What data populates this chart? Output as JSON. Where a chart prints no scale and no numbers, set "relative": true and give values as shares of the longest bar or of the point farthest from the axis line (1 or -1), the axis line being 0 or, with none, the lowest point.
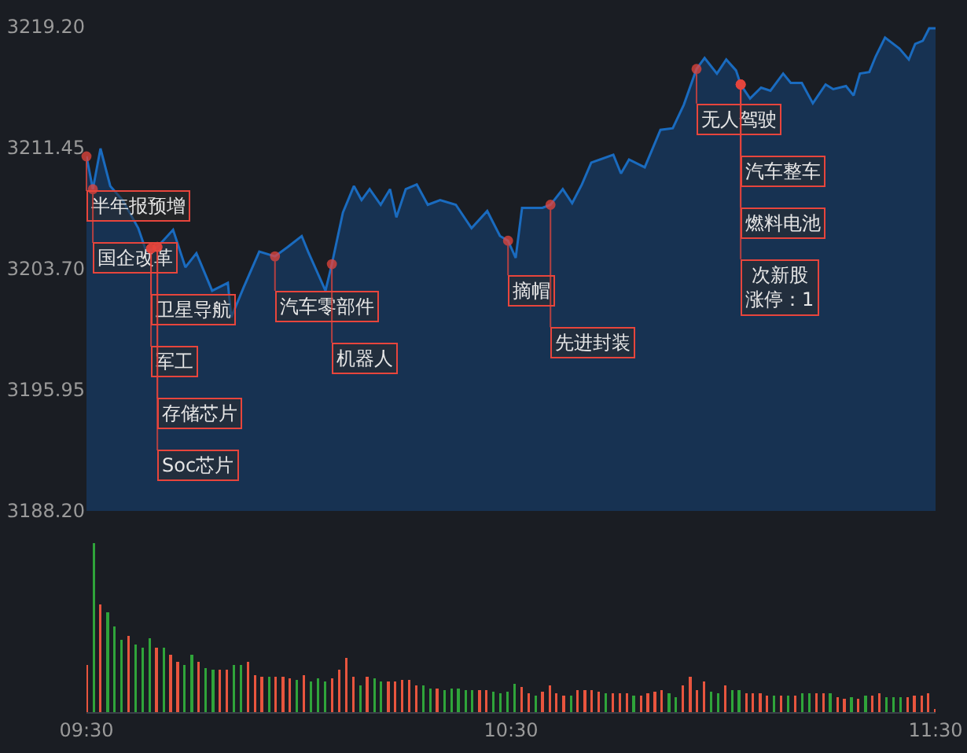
{
  "chart_data": [
    {
      "type": "area",
      "tick_labels": "y",
      "grid": false,
      "legend": false,
      "marker": "none",
      "xlim": [
        9.5,
        11.5
      ],
      "ylim": [
        3188.2,
        3219.2
      ],
      "yticks": [
        {
          "value": 3188.2,
          "label": "3188.20"
        },
        {
          "value": 3195.95,
          "label": "3195.95"
        },
        {
          "value": 3203.7,
          "label": "3203.70"
        },
        {
          "value": 3211.45,
          "label": "3211.45"
        },
        {
          "value": 3219.2,
          "label": "3219.20"
        }
      ],
      "x": [
        9.5,
        9.515,
        9.533,
        9.556,
        9.585,
        9.622,
        9.641,
        9.667,
        9.704,
        9.733,
        9.759,
        9.796,
        9.833,
        9.841,
        9.87,
        9.907,
        9.944,
        9.974,
        10.007,
        10.022,
        10.063,
        10.078,
        10.104,
        10.13,
        10.148,
        10.167,
        10.193,
        10.215,
        10.23,
        10.252,
        10.278,
        10.304,
        10.333,
        10.37,
        10.407,
        10.444,
        10.474,
        10.493,
        10.511,
        10.526,
        10.574,
        10.593,
        10.622,
        10.644,
        10.667,
        10.689,
        10.741,
        10.759,
        10.778,
        10.815,
        10.852,
        10.881,
        10.907,
        10.937,
        10.956,
        10.985,
        11.007,
        11.03,
        11.041,
        11.063,
        11.089,
        11.111,
        11.141,
        11.159,
        11.185,
        11.211,
        11.241,
        11.259,
        11.289,
        11.307,
        11.322,
        11.344,
        11.359,
        11.381,
        11.415,
        11.437,
        11.452,
        11.47,
        11.485,
        11.5
      ],
      "series": [
        {
          "color": "#1a6bbf",
          "values": [
            3210.9,
            3208.8,
            3211.4,
            3209.0,
            3208.1,
            3206.3,
            3204.8,
            3205.1,
            3206.2,
            3203.8,
            3204.7,
            3202.3,
            3202.8,
            3200.6,
            3202.5,
            3204.8,
            3204.5,
            3205.1,
            3205.8,
            3204.8,
            3202.3,
            3204.0,
            3207.3,
            3209.0,
            3208.1,
            3208.8,
            3207.8,
            3208.8,
            3207.0,
            3208.8,
            3209.1,
            3207.8,
            3208.1,
            3207.8,
            3206.3,
            3207.4,
            3205.8,
            3205.5,
            3204.4,
            3207.6,
            3207.6,
            3207.8,
            3208.8,
            3207.9,
            3209.1,
            3210.5,
            3211.0,
            3209.8,
            3210.7,
            3210.2,
            3212.6,
            3212.7,
            3214.2,
            3216.5,
            3217.2,
            3216.2,
            3217.1,
            3216.4,
            3215.5,
            3214.6,
            3215.3,
            3215.1,
            3216.2,
            3215.6,
            3215.6,
            3214.3,
            3215.5,
            3215.2,
            3215.4,
            3214.8,
            3216.2,
            3216.3,
            3217.3,
            3218.5,
            3217.8,
            3217.1,
            3218.1,
            3218.3,
            3219.1,
            3219.1
          ]
        }
      ],
      "annotations": [
        {
          "text": "半年报预增",
          "x": 9.5,
          "y": 3210.9
        },
        {
          "text": "国企改革",
          "x": 9.515,
          "y": 3208.8
        },
        {
          "text": "卫星导航",
          "x": 9.652,
          "y": 3205.0
        },
        {
          "text": "军工",
          "x": 9.652,
          "y": 3205.0
        },
        {
          "text": "存储芯片",
          "x": 9.667,
          "y": 3205.1
        },
        {
          "text": "Soc芯片",
          "x": 9.667,
          "y": 3205.1
        },
        {
          "text": "汽车零部件",
          "x": 9.944,
          "y": 3204.5
        },
        {
          "text": "机器人",
          "x": 10.078,
          "y": 3204.0
        },
        {
          "text": "摘帽",
          "x": 10.493,
          "y": 3205.5
        },
        {
          "text": "先进封装",
          "x": 10.593,
          "y": 3207.8
        },
        {
          "text": "无人驾驶",
          "x": 10.937,
          "y": 3216.5
        },
        {
          "text": "汽车整车",
          "x": 11.041,
          "y": 3215.5
        },
        {
          "text": "燃料电池",
          "x": 11.041,
          "y": 3215.5
        },
        {
          "text": "次新股涨停：1",
          "x": 11.041,
          "y": 3215.5
        }
      ]
    },
    {
      "type": "bar",
      "relative": true,
      "tick_labels": "x",
      "grid": false,
      "legend": false,
      "xlim": [
        9.5,
        11.5
      ],
      "xticks": [
        {
          "value": 9.5,
          "label": "09:30"
        },
        {
          "value": 10.5,
          "label": "10:30"
        },
        {
          "value": 11.5,
          "label": "11:30"
        }
      ],
      "x": [
        9.5,
        9.517,
        9.533,
        9.55,
        9.566,
        9.583,
        9.599,
        9.616,
        9.632,
        9.649,
        9.665,
        9.682,
        9.698,
        9.715,
        9.731,
        9.748,
        9.764,
        9.781,
        9.798,
        9.814,
        9.831,
        9.847,
        9.864,
        9.88,
        9.897,
        9.913,
        9.93,
        9.946,
        9.963,
        9.979,
        9.996,
        10.012,
        10.029,
        10.045,
        10.062,
        10.079,
        10.095,
        10.112,
        10.128,
        10.145,
        10.161,
        10.178,
        10.194,
        10.211,
        10.227,
        10.244,
        10.26,
        10.277,
        10.293,
        10.31,
        10.326,
        10.343,
        10.36,
        10.376,
        10.393,
        10.409,
        10.426,
        10.442,
        10.459,
        10.475,
        10.492,
        10.508,
        10.525,
        10.541,
        10.558,
        10.574,
        10.591,
        10.607,
        10.624,
        10.641,
        10.657,
        10.674,
        10.69,
        10.707,
        10.723,
        10.74,
        10.756,
        10.773,
        10.789,
        10.806,
        10.822,
        10.839,
        10.855,
        10.872,
        10.888,
        10.905,
        10.922,
        10.938,
        10.955,
        10.971,
        10.988,
        11.004,
        11.021,
        11.037,
        11.054,
        11.07,
        11.087,
        11.103,
        11.12,
        11.136,
        11.153,
        11.169,
        11.186,
        11.203,
        11.219,
        11.236,
        11.252,
        11.269,
        11.285,
        11.302,
        11.318,
        11.335,
        11.351,
        11.368,
        11.384,
        11.401,
        11.417,
        11.434,
        11.45,
        11.467,
        11.483,
        11.5
      ],
      "values": [
        0.28,
        1,
        0.64,
        0.59,
        0.51,
        0.43,
        0.45,
        0.4,
        0.38,
        0.44,
        0.38,
        0.38,
        0.34,
        0.3,
        0.28,
        0.34,
        0.3,
        0.26,
        0.25,
        0.25,
        0.25,
        0.28,
        0.28,
        0.3,
        0.22,
        0.21,
        0.21,
        0.21,
        0.21,
        0.2,
        0.19,
        0.22,
        0.18,
        0.2,
        0.18,
        0.2,
        0.25,
        0.32,
        0.21,
        0.16,
        0.21,
        0.2,
        0.18,
        0.18,
        0.18,
        0.19,
        0.19,
        0.16,
        0.16,
        0.14,
        0.14,
        0.13,
        0.14,
        0.14,
        0.13,
        0.13,
        0.13,
        0.13,
        0.12,
        0.11,
        0.12,
        0.17,
        0.15,
        0.11,
        0.1,
        0.12,
        0.16,
        0.11,
        0.1,
        0.1,
        0.13,
        0.13,
        0.13,
        0.12,
        0.11,
        0.11,
        0.11,
        0.11,
        0.1,
        0.1,
        0.11,
        0.12,
        0.13,
        0.11,
        0.09,
        0.16,
        0.21,
        0.13,
        0.18,
        0.12,
        0.11,
        0.16,
        0.13,
        0.13,
        0.11,
        0.11,
        0.11,
        0.1,
        0.1,
        0.1,
        0.1,
        0.1,
        0.11,
        0.11,
        0.11,
        0.11,
        0.11,
        0.09,
        0.08,
        0.09,
        0.08,
        0.1,
        0.1,
        0.11,
        0.09,
        0.09,
        0.09,
        0.09,
        0.1,
        0.1,
        0.11,
        0.02
      ],
      "colors": [
        "#e8553e",
        "#2fa43a",
        "#e8553e",
        "#2fa43a",
        "#2fa43a",
        "#2fa43a",
        "#e8553e",
        "#2fa43a",
        "#2fa43a",
        "#2fa43a",
        "#e8553e",
        "#2fa43a",
        "#e8553e",
        "#e8553e",
        "#2fa43a",
        "#2fa43a",
        "#e8553e",
        "#2fa43a",
        "#2fa43a",
        "#e8553e",
        "#e8553e",
        "#2fa43a",
        "#2fa43a",
        "#e8553e",
        "#e8553e",
        "#e8553e",
        "#2fa43a",
        "#e8553e",
        "#e8553e",
        "#e8553e",
        "#2fa43a",
        "#e8553e",
        "#2fa43a",
        "#2fa43a",
        "#2fa43a",
        "#e8553e",
        "#e8553e",
        "#e8553e",
        "#e8553e",
        "#2fa43a",
        "#e8553e",
        "#2fa43a",
        "#2fa43a",
        "#e8553e",
        "#e8553e",
        "#e8553e",
        "#e8553e",
        "#e8553e",
        "#2fa43a",
        "#2fa43a",
        "#e8553e",
        "#2fa43a",
        "#2fa43a",
        "#2fa43a",
        "#2fa43a",
        "#2fa43a",
        "#e8553e",
        "#e8553e",
        "#2fa43a",
        "#2fa43a",
        "#2fa43a",
        "#2fa43a",
        "#e8553e",
        "#e8553e",
        "#2fa43a",
        "#e8553e",
        "#e8553e",
        "#e8553e",
        "#e8553e",
        "#2fa43a",
        "#e8553e",
        "#e8553e",
        "#e8553e",
        "#e8553e",
        "#2fa43a",
        "#e8553e",
        "#e8553e",
        "#e8553e",
        "#2fa43a",
        "#e8553e",
        "#e8553e",
        "#e8553e",
        "#e8553e",
        "#2fa43a",
        "#2fa43a",
        "#e8553e",
        "#e8553e",
        "#e8553e",
        "#e8553e",
        "#2fa43a",
        "#2fa43a",
        "#e8553e",
        "#2fa43a",
        "#2fa43a",
        "#e8553e",
        "#e8553e",
        "#e8553e",
        "#e8553e",
        "#2fa43a",
        "#e8553e",
        "#2fa43a",
        "#e8553e",
        "#2fa43a",
        "#2fa43a",
        "#e8553e",
        "#e8553e",
        "#2fa43a",
        "#e8553e",
        "#e8553e",
        "#2fa43a",
        "#e8553e",
        "#2fa43a",
        "#e8553e",
        "#e8553e",
        "#2fa43a",
        "#2fa43a",
        "#2fa43a",
        "#e8553e",
        "#e8553e",
        "#e8553e",
        "#e8553e",
        "#e8553e"
      ]
    }
  ]
}
